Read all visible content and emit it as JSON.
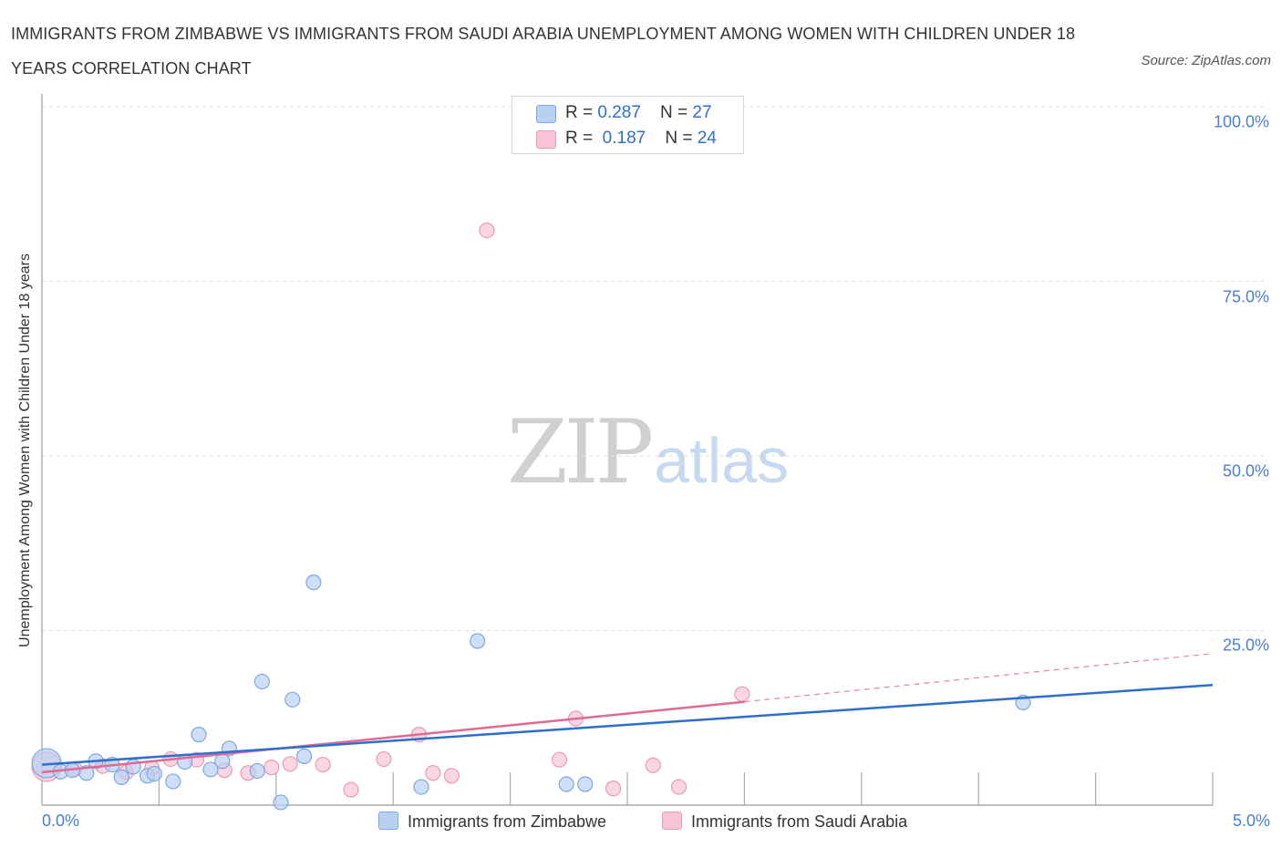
{
  "chart_data": {
    "type": "scatter",
    "title": "IMMIGRANTS FROM ZIMBABWE VS IMMIGRANTS FROM SAUDI ARABIA UNEMPLOYMENT AMONG WOMEN WITH CHILDREN UNDER 18 YEARS CORRELATION CHART",
    "source": "Source: ZipAtlas.com",
    "xlabel": "",
    "ylabel": "Unemployment Among Women with Children Under 18 years",
    "xlim": [
      0,
      5
    ],
    "ylim": [
      0,
      100
    ],
    "x_tick_labels": [
      "0.0%",
      "5.0%"
    ],
    "y_tick_values": [
      25,
      50,
      75,
      100
    ],
    "y_tick_labels": [
      "25.0%",
      "50.0%",
      "75.0%",
      "100.0%"
    ],
    "watermark": {
      "zip": "ZIP",
      "atlas": "atlas"
    },
    "legend": [
      {
        "swatch": "zimbabwe",
        "r_label": "R = ",
        "r_value": "0.287",
        "n_label": "N = ",
        "n_value": "27"
      },
      {
        "swatch": "saudi",
        "r_label": "R = ",
        "r_value": "0.187",
        "n_label": "N = ",
        "n_value": "24"
      }
    ],
    "series": [
      {
        "name": "Immigrants from Zimbabwe",
        "color": "#7fa7e0",
        "fill": "#b8d0f2",
        "trend_color": "#2f6fcc",
        "trend": {
          "x0": 0.0,
          "y0": 5.8,
          "x1": 5.0,
          "y1": 17.2
        },
        "points": [
          {
            "x": 0.02,
            "y": 6.0,
            "size": "large"
          },
          {
            "x": 0.08,
            "y": 4.8
          },
          {
            "x": 0.13,
            "y": 5.0
          },
          {
            "x": 0.19,
            "y": 4.6
          },
          {
            "x": 0.23,
            "y": 6.3
          },
          {
            "x": 0.3,
            "y": 5.8
          },
          {
            "x": 0.34,
            "y": 4.0
          },
          {
            "x": 0.39,
            "y": 5.5
          },
          {
            "x": 0.45,
            "y": 4.2
          },
          {
            "x": 0.48,
            "y": 4.5
          },
          {
            "x": 0.56,
            "y": 3.4
          },
          {
            "x": 0.61,
            "y": 6.2
          },
          {
            "x": 0.67,
            "y": 10.1
          },
          {
            "x": 0.72,
            "y": 5.1
          },
          {
            "x": 0.77,
            "y": 6.3
          },
          {
            "x": 0.8,
            "y": 8.1
          },
          {
            "x": 0.92,
            "y": 4.9
          },
          {
            "x": 0.94,
            "y": 17.7
          },
          {
            "x": 1.02,
            "y": 0.4
          },
          {
            "x": 1.07,
            "y": 15.1
          },
          {
            "x": 1.12,
            "y": 7.0
          },
          {
            "x": 1.16,
            "y": 31.9
          },
          {
            "x": 1.62,
            "y": 2.6
          },
          {
            "x": 1.86,
            "y": 23.5
          },
          {
            "x": 2.24,
            "y": 3.0
          },
          {
            "x": 2.32,
            "y": 3.0
          },
          {
            "x": 4.19,
            "y": 14.7
          }
        ]
      },
      {
        "name": "Immigrants from Saudi Arabia",
        "color": "#eb9ab5",
        "fill": "#f7c4d5",
        "trend_color": "#e06a95",
        "trend": {
          "x0": 0.0,
          "y0": 4.7,
          "x1": 3.0,
          "y1": 14.8
        },
        "trend_dashed": {
          "x0": 3.0,
          "y0": 14.8,
          "x1": 5.0,
          "y1": 21.7
        },
        "points": [
          {
            "x": 0.02,
            "y": 5.5,
            "size": "large"
          },
          {
            "x": 0.14,
            "y": 5.2
          },
          {
            "x": 0.26,
            "y": 5.6
          },
          {
            "x": 0.36,
            "y": 4.7
          },
          {
            "x": 0.47,
            "y": 5.3
          },
          {
            "x": 0.55,
            "y": 6.6
          },
          {
            "x": 0.66,
            "y": 6.5
          },
          {
            "x": 0.78,
            "y": 5.0
          },
          {
            "x": 0.88,
            "y": 4.6
          },
          {
            "x": 0.98,
            "y": 5.4
          },
          {
            "x": 1.06,
            "y": 5.9
          },
          {
            "x": 1.2,
            "y": 5.8
          },
          {
            "x": 1.32,
            "y": 2.2
          },
          {
            "x": 1.46,
            "y": 6.6
          },
          {
            "x": 1.61,
            "y": 10.1
          },
          {
            "x": 1.67,
            "y": 4.6
          },
          {
            "x": 1.75,
            "y": 4.2
          },
          {
            "x": 1.9,
            "y": 82.3
          },
          {
            "x": 2.21,
            "y": 6.5
          },
          {
            "x": 2.28,
            "y": 12.4
          },
          {
            "x": 2.44,
            "y": 2.4
          },
          {
            "x": 2.61,
            "y": 5.7
          },
          {
            "x": 2.72,
            "y": 2.6
          },
          {
            "x": 2.99,
            "y": 15.9
          }
        ]
      }
    ]
  }
}
